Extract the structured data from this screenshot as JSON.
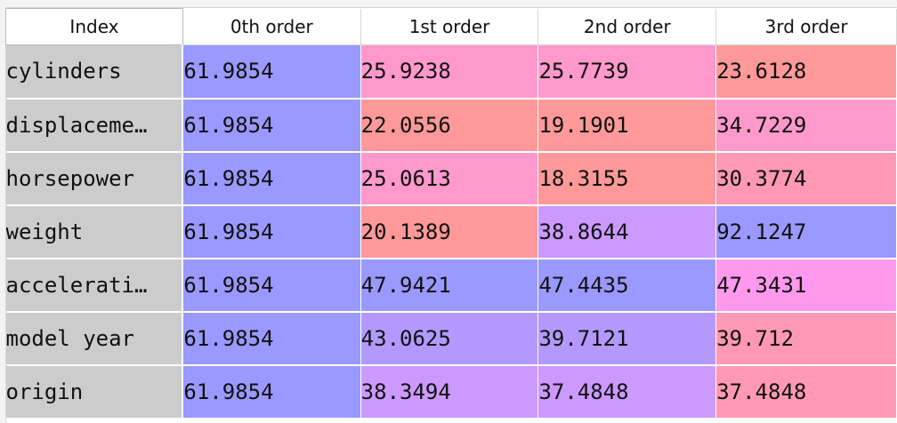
{
  "table": {
    "index_header": "Index",
    "columns": [
      "0th order",
      "1st order",
      "2nd order",
      "3rd order"
    ],
    "rows": [
      {
        "label": "cylinders",
        "values": [
          "61.9854",
          "25.9238",
          "25.7739",
          "23.6128"
        ],
        "colors": [
          "#9999ff",
          "#ff99cc",
          "#ff99cc",
          "#ff9999"
        ]
      },
      {
        "label": "displaceme…",
        "values": [
          "61.9854",
          "22.0556",
          "19.1901",
          "34.7229"
        ],
        "colors": [
          "#9999ff",
          "#ff9999",
          "#ff9999",
          "#ff99cc"
        ]
      },
      {
        "label": "horsepower",
        "values": [
          "61.9854",
          "25.0613",
          "18.3155",
          "30.3774"
        ],
        "colors": [
          "#9999ff",
          "#ff99cc",
          "#ff9999",
          "#ff99b3"
        ]
      },
      {
        "label": "weight",
        "values": [
          "61.9854",
          "20.1389",
          "38.8644",
          "92.1247"
        ],
        "colors": [
          "#9999ff",
          "#ff9999",
          "#cc99ff",
          "#9999ff"
        ]
      },
      {
        "label": "accelerati…",
        "values": [
          "61.9854",
          "47.9421",
          "47.4435",
          "47.3431"
        ],
        "colors": [
          "#9999ff",
          "#9999ff",
          "#9999ff",
          "#ff99ee"
        ]
      },
      {
        "label": "model year",
        "values": [
          "61.9854",
          "43.0625",
          "39.7121",
          "39.712"
        ],
        "colors": [
          "#9999ff",
          "#b399ff",
          "#b399ff",
          "#ff99b3"
        ]
      },
      {
        "label": "origin",
        "values": [
          "61.9854",
          "38.3494",
          "37.4848",
          "37.4848"
        ],
        "colors": [
          "#9999ff",
          "#cc99ff",
          "#cc99ff",
          "#ff99b3"
        ]
      }
    ]
  }
}
